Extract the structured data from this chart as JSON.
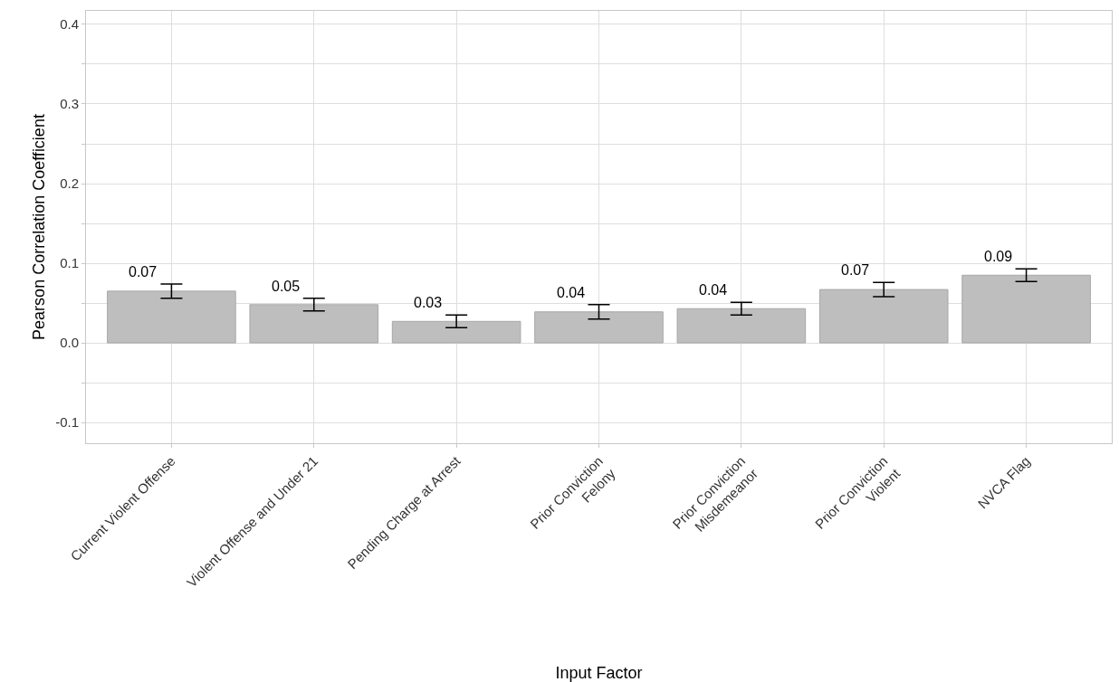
{
  "chart_data": {
    "type": "bar",
    "xlabel": "Input Factor",
    "ylabel": "Pearson Correlation Coefficient",
    "categories": [
      "Current Violent Offense",
      "Violent Offense and Under 21",
      "Pending Charge at Arrest",
      "Prior Conviction\nFelony",
      "Prior Conviction\nMisdemeanor",
      "Prior Conviction\nViolent",
      "NVCA Flag"
    ],
    "values": [
      0.065,
      0.048,
      0.027,
      0.039,
      0.043,
      0.067,
      0.085
    ],
    "errors": [
      0.009,
      0.008,
      0.008,
      0.009,
      0.008,
      0.009,
      0.008
    ],
    "value_labels": [
      "0.07",
      "0.05",
      "0.03",
      "0.04",
      "0.04",
      "0.07",
      "0.09"
    ],
    "color": "#bebebe",
    "ylim": [
      -0.126,
      0.417
    ],
    "yticks": [
      -0.1,
      {
        "value": -0.05,
        "label": null
      },
      "0.0",
      {
        "value": 0.05,
        "label": null
      },
      0.1,
      {
        "value": 0.15,
        "label": null
      },
      0.2,
      {
        "value": 0.25,
        "label": null
      },
      0.3,
      {
        "value": 0.35,
        "label": null
      },
      0.4
    ],
    "grid": true,
    "legend": false
  }
}
